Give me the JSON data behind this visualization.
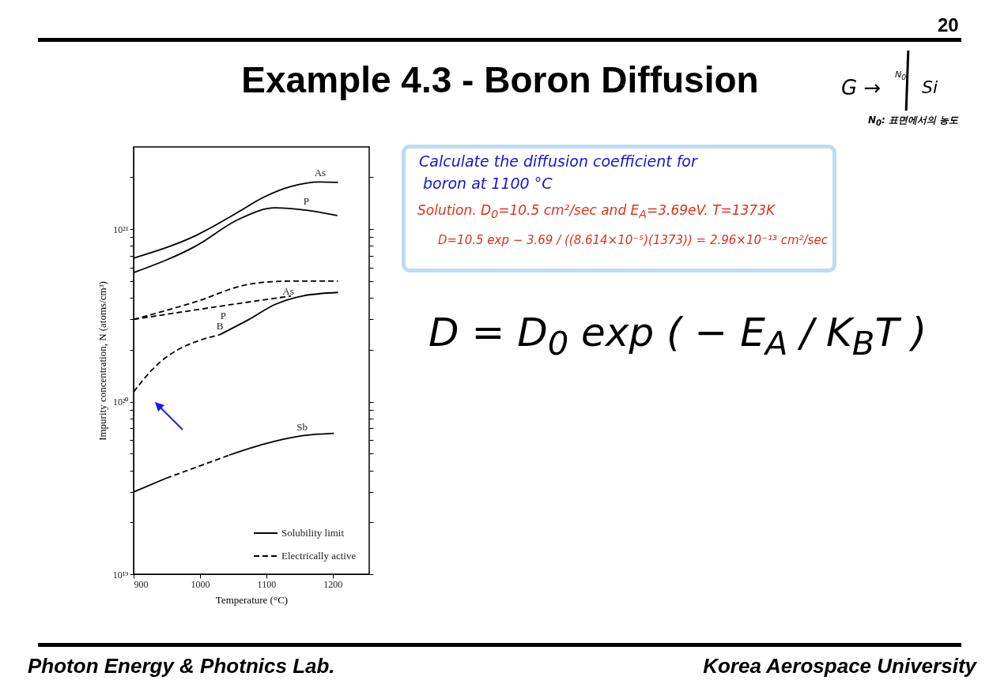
{
  "chart_data": {
    "type": "line",
    "title": "Example 4.3 - Boron Diffusion",
    "xlabel": "Temperature (°C)",
    "ylabel": "Impurity concentration, N (atoms/cm³)",
    "log": "y",
    "xlim": [
      900,
      1255
    ],
    "xticks": [
      900,
      1000,
      1100,
      1200
    ],
    "ylim": [
      1e+19,
      3e+21
    ],
    "yticks": [
      {
        "value": 1e+19,
        "label": "10¹⁹"
      },
      {
        "value": 2e+19,
        "label": null
      },
      {
        "value": 3e+19,
        "label": null
      },
      {
        "value": 4e+19,
        "label": null
      },
      {
        "value": 5e+19,
        "label": null
      },
      {
        "value": 6e+19,
        "label": null
      },
      {
        "value": 7e+19,
        "label": null
      },
      {
        "value": 8e+19,
        "label": null
      },
      {
        "value": 9e+19,
        "label": null
      },
      {
        "value": 1e+20,
        "label": "10²⁰"
      },
      {
        "value": 2e+20,
        "label": null
      },
      {
        "value": 3e+20,
        "label": null
      },
      {
        "value": 4e+20,
        "label": null
      },
      {
        "value": 5e+20,
        "label": null
      },
      {
        "value": 6e+20,
        "label": null
      },
      {
        "value": 7e+20,
        "label": null
      },
      {
        "value": 8e+20,
        "label": null
      },
      {
        "value": 9e+20,
        "label": null
      },
      {
        "value": 1e+21,
        "label": "10²¹"
      },
      {
        "value": 2e+21,
        "label": null
      }
    ],
    "grid": false,
    "legend": "bottom right",
    "series": [
      {
        "name": "Solubility limit",
        "color": "#000000",
        "line_style": "solid",
        "x": [
          900,
          994,
          1058,
          1094,
          1137,
          1181,
          1208
        ],
        "values": [
          6.8e+20,
          9.2e+20,
          1.26e+21,
          1.52e+21,
          1.77e+21,
          1.88e+21,
          1.87e+21
        ]
      },
      {
        "color": "#000000",
        "line_style": "solid",
        "x": [
          900,
          994,
          1058,
          1113,
          1160,
          1207
        ],
        "values": [
          5.6e+20,
          8e+20,
          1.14e+21,
          1.33e+21,
          1.29e+21,
          1.2e+21
        ]
      },
      {
        "name": "Electrically active",
        "color": "#000000",
        "line_style": "dashed",
        "x": [
          900,
          994,
          1074,
          1133,
          1208
        ],
        "values": [
          3e+20,
          3.8e+20,
          4.8e+20,
          5e+20,
          5e+20
        ]
      },
      {
        "color": "#000000",
        "line_style": "dashed",
        "x": [
          900,
          1035,
          1137
        ],
        "values": [
          3e+20,
          3.6e+20,
          4.1e+20
        ]
      },
      {
        "color": "#000000",
        "line_style": "dashed",
        "x": [
          900,
          927,
          1030
        ],
        "values": [
          1.14e+20,
          1.52e+20,
          2.45e+20
        ]
      },
      {
        "color": "#000000",
        "line_style": "solid",
        "x": [
          1030,
          1074,
          1113,
          1154,
          1208
        ],
        "values": [
          2.45e+20,
          3e+20,
          3.66e+20,
          4.1e+20,
          4.3e+20
        ]
      },
      {
        "color": "#000000",
        "line_style": "solid",
        "x": [
          900,
          949
        ],
        "values": [
          3e+19,
          3.6e+19
        ]
      },
      {
        "color": "#000000",
        "line_style": "dashed",
        "x": [
          949,
          1044
        ],
        "values": [
          3.6e+19,
          4.9e+19
        ]
      },
      {
        "color": "#000000",
        "line_style": "solid",
        "x": [
          1044,
          1098,
          1154,
          1202
        ],
        "values": [
          4.9e+19,
          5.7e+19,
          6.35e+19,
          6.56e+19
        ]
      }
    ],
    "annotations": [
      {
        "text": "As",
        "x": 1181,
        "y": 1.88e+21
      },
      {
        "text": "P",
        "x": 1160,
        "y": 1.29e+21
      },
      {
        "text": "As",
        "x": 1133,
        "y": 5e+20
      },
      {
        "text": "P",
        "x": 1035,
        "y": 3.6e+20
      },
      {
        "text": "B",
        "x": 1030,
        "y": 2.45e+20
      },
      {
        "text": "Sb",
        "x": 1154,
        "y": 6.35e+19
      },
      "20",
      "Calculate the diffusion coefficient for",
      "boron at 1100 °C",
      "Solution. D$_{0}$=10.5 cm²/sec and E$_{A}$=3.69eV. T=1373K",
      "D=10.5 exp − 3.69 / ((8.614×10⁻⁵)(1373)) = 2.96×10⁻¹³ cm²/sec",
      "D = D$_{0}$ exp ( − E$_{A}$ / K$_{B}$T )",
      "G →",
      "N$_{0}$",
      "Si",
      "N$_{0}$: 표면에서의 농도",
      "Photon Energy & Photnics Lab.",
      "Korea Aerospace University"
    ]
  }
}
